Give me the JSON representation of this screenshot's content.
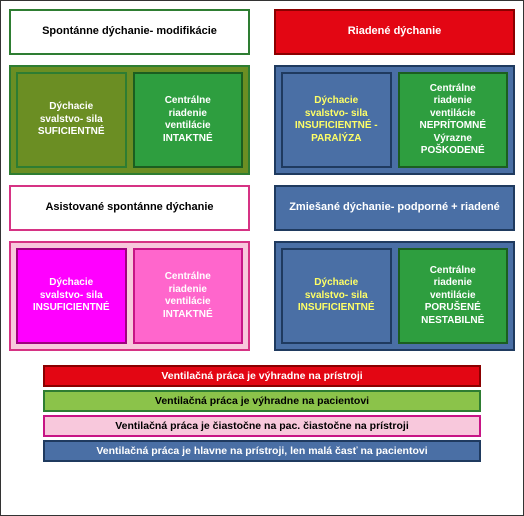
{
  "sections": {
    "topLeft": {
      "header": {
        "text": "Spontánne dýchanie- modifikácie",
        "bg": "#ffffff",
        "textColor": "#000000",
        "border": "#2e7d32"
      },
      "container": {
        "bg": "#6b8e23",
        "border": "#2e7d32"
      },
      "left": {
        "lines": [
          "Dýchacie",
          "svalstvo- sila",
          "SUFICIENTNÉ"
        ],
        "bg": "#6b8e23",
        "textColor": "#ffffff",
        "border": "#2e7d32"
      },
      "right": {
        "lines": [
          "Centrálne",
          "riadenie",
          "ventilácie",
          "INTAKTNÉ"
        ],
        "bg": "#2e9e3f",
        "textColor": "#ffffff",
        "border": "#1b5e20"
      }
    },
    "topRight": {
      "header": {
        "text": "Riadené dýchanie",
        "bg": "#e30613",
        "textColor": "#ffffff",
        "border": "#8b0000"
      },
      "container": {
        "bg": "#4a6fa5",
        "border": "#1f3a5f"
      },
      "left": {
        "lines": [
          "Dýchacie",
          "svalstvo- sila",
          "INSUFICIENTNÉ -",
          "PARAlÝZA"
        ],
        "bg": "#4a6fa5",
        "textColor": "#ffff66",
        "border": "#1f3a5f"
      },
      "right": {
        "lines": [
          "Centrálne",
          "riadenie",
          "ventilácie",
          "NEPRÍTOMNÉ",
          "Výrazne",
          "POŠKODENÉ"
        ],
        "bg": "#2e9e3f",
        "textColor": "#ffffff",
        "border": "#1b5e20"
      }
    },
    "botLeft": {
      "header": {
        "text": "Asistované spontánne dýchanie",
        "bg": "#ffffff",
        "textColor": "#000000",
        "border": "#d63384"
      },
      "container": {
        "bg": "#f8c8dc",
        "border": "#d63384"
      },
      "left": {
        "lines": [
          "Dýchacie",
          "svalstvo- sila",
          "INSUFICIENTNÉ"
        ],
        "bg": "#ff00ff",
        "textColor": "#ffffff",
        "border": "#a0007f"
      },
      "right": {
        "lines": [
          "Centrálne",
          "riadenie",
          "ventilácie",
          "INTAKTNÉ"
        ],
        "bg": "#ff66cc",
        "textColor": "#ffffff",
        "border": "#c71585"
      }
    },
    "botRight": {
      "header": {
        "text": "Zmiešané dýchanie- podporné + riadené",
        "bg": "#4a6fa5",
        "textColor": "#ffffff",
        "border": "#1f3a5f"
      },
      "container": {
        "bg": "#4a6fa5",
        "border": "#1f3a5f"
      },
      "left": {
        "lines": [
          "Dýchacie",
          "svalstvo- sila",
          "INSUFICIENTNÉ"
        ],
        "bg": "#4a6fa5",
        "textColor": "#ffff66",
        "border": "#1f3a5f"
      },
      "right": {
        "lines": [
          "Centrálne",
          "riadenie",
          "ventilácie",
          "PORUŠENÉ",
          "NESTABILNÉ"
        ],
        "bg": "#2e9e3f",
        "textColor": "#ffffff",
        "border": "#1b5e20"
      }
    }
  },
  "legend": [
    {
      "text": "Ventilačná práca je výhradne na prístroji",
      "bg": "#e30613",
      "textColor": "#ffffff",
      "border": "#8b0000"
    },
    {
      "text": "Ventilačná práca je výhradne na pacientovi",
      "bg": "#8bc34a",
      "textColor": "#000000",
      "border": "#2e7d32"
    },
    {
      "text": "Ventilačná práca je čiastočne na pac. čiastočne na prístroji",
      "bg": "#f8c8dc",
      "textColor": "#000000",
      "border": "#c71585"
    },
    {
      "text": "Ventilačná práca je hlavne na prístroji, len malá časť na pacientovi",
      "bg": "#4a6fa5",
      "textColor": "#ffffff",
      "border": "#1f3a5f"
    }
  ]
}
